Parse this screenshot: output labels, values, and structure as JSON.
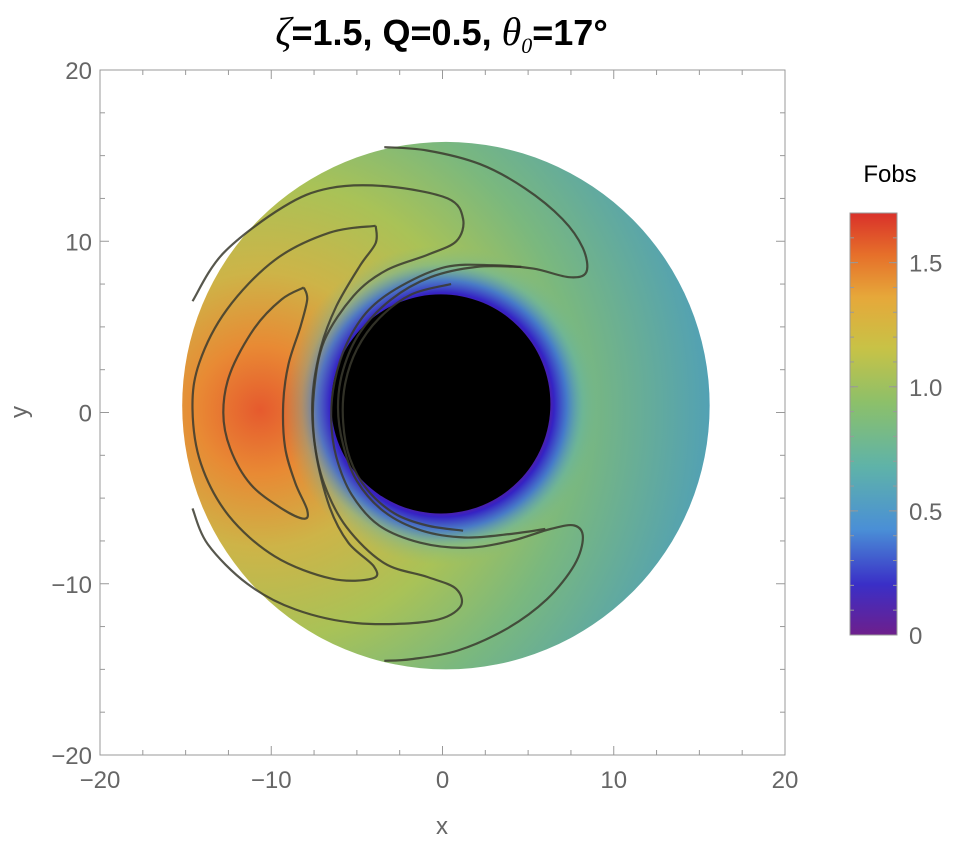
{
  "title": {
    "zeta_symbol": "ζ",
    "zeta_part": "=1.5, Q=0.5, ",
    "theta_symbol": "θ",
    "theta_sub": "0",
    "theta_part": "=17°"
  },
  "colors": {
    "shadow": "#000000",
    "contour": "#3a3a2e",
    "frame": "#999999",
    "tick_text": "#666666",
    "colormap": [
      "#6e1f8c",
      "#3a2fc7",
      "#4a8fd6",
      "#5fb3a8",
      "#8cc06a",
      "#c8c246",
      "#e6a83a",
      "#e6702a",
      "#d9312a"
    ]
  },
  "chart_data": {
    "type": "heatmap",
    "title": "ζ=1.5, Q=0.5, θ0=17°",
    "xlabel": "x",
    "ylabel": "y",
    "xlim": [
      -20,
      20
    ],
    "ylim": [
      -20,
      20
    ],
    "x_ticks": [
      {
        "value": -20,
        "label": "−20"
      },
      {
        "value": -10,
        "label": "−10"
      },
      {
        "value": 0,
        "label": "0"
      },
      {
        "value": 10,
        "label": "10"
      },
      {
        "value": 20,
        "label": "20"
      }
    ],
    "y_ticks": [
      {
        "value": 20,
        "label": "20"
      },
      {
        "value": 10,
        "label": "10"
      },
      {
        "value": 0,
        "label": "0"
      },
      {
        "value": -10,
        "label": "−10"
      },
      {
        "value": -20,
        "label": "−20"
      }
    ],
    "colorbar": {
      "title": "Fobs",
      "range": [
        0,
        1.7
      ],
      "ticks": [
        {
          "value": 0,
          "label": "0"
        },
        {
          "value": 0.5,
          "label": "0.5"
        },
        {
          "value": 1.0,
          "label": "1.0"
        },
        {
          "value": 1.5,
          "label": "1.5"
        }
      ]
    },
    "disk": {
      "center": [
        0.2,
        0.4
      ],
      "radius": 15.4
    },
    "shadow": {
      "center": [
        -0.1,
        0.5
      ],
      "radius": 6.4
    },
    "peak": {
      "center": [
        -10,
        0.5
      ],
      "value": 1.6
    },
    "contours": [
      {
        "name": "contour-inner",
        "points": [
          [
            -8.1,
            7.3
          ],
          [
            -9.4,
            6.6
          ],
          [
            -11.0,
            4.9
          ],
          [
            -12.4,
            2.3
          ],
          [
            -12.8,
            0.0
          ],
          [
            -12.4,
            -2.1
          ],
          [
            -11.2,
            -4.2
          ],
          [
            -9.4,
            -5.6
          ],
          [
            -8.1,
            -6.2
          ],
          [
            -7.9,
            -5.7
          ],
          [
            -8.6,
            -4.1
          ],
          [
            -9.2,
            -2.0
          ],
          [
            -9.3,
            0.5
          ],
          [
            -9.0,
            2.8
          ],
          [
            -8.3,
            5.0
          ],
          [
            -7.9,
            6.6
          ],
          [
            -8.1,
            7.3
          ]
        ]
      },
      {
        "name": "contour-middle",
        "points": [
          [
            -3.9,
            10.9
          ],
          [
            -6.6,
            10.5
          ],
          [
            -9.8,
            8.9
          ],
          [
            -12.6,
            6.0
          ],
          [
            -14.2,
            2.9
          ],
          [
            -14.6,
            0.2
          ],
          [
            -14.1,
            -3.0
          ],
          [
            -12.5,
            -6.0
          ],
          [
            -9.8,
            -8.4
          ],
          [
            -6.5,
            -9.7
          ],
          [
            -4.1,
            -9.7
          ],
          [
            -4.0,
            -9.0
          ],
          [
            -5.5,
            -7.6
          ],
          [
            -6.6,
            -5.5
          ],
          [
            -7.4,
            -2.3
          ],
          [
            -7.6,
            0.8
          ],
          [
            -7.1,
            3.8
          ],
          [
            -6.2,
            6.2
          ],
          [
            -4.8,
            8.6
          ],
          [
            -3.9,
            9.9
          ],
          [
            -3.9,
            10.9
          ]
        ]
      },
      {
        "name": "contour-outer",
        "points": [
          [
            -14.6,
            6.5
          ],
          [
            -12.8,
            9.3
          ],
          [
            -9.3,
            12.0
          ],
          [
            -6.6,
            13.1
          ],
          [
            -3.2,
            13.2
          ],
          [
            0.3,
            12.5
          ],
          [
            1.2,
            11.3
          ],
          [
            0.8,
            10.0
          ],
          [
            -0.9,
            9.2
          ],
          [
            -3.3,
            8.3
          ],
          [
            -5.2,
            6.8
          ],
          [
            -6.9,
            4.2
          ],
          [
            -7.5,
            1.3
          ],
          [
            -7.5,
            -1.5
          ],
          [
            -6.9,
            -4.2
          ],
          [
            -5.6,
            -6.7
          ],
          [
            -3.4,
            -8.8
          ],
          [
            -0.9,
            -9.6
          ],
          [
            0.8,
            -10.3
          ],
          [
            1.0,
            -11.4
          ],
          [
            -0.8,
            -12.2
          ],
          [
            -5.0,
            -12.3
          ],
          [
            -8.6,
            -11.5
          ],
          [
            -11.4,
            -10.0
          ],
          [
            -13.7,
            -7.7
          ],
          [
            -14.6,
            -5.6
          ]
        ]
      },
      {
        "name": "contour-crescent",
        "points": [
          [
            -3.4,
            15.5
          ],
          [
            -0.9,
            15.3
          ],
          [
            2.2,
            14.5
          ],
          [
            4.8,
            13.1
          ],
          [
            7.0,
            11.3
          ],
          [
            8.2,
            9.6
          ],
          [
            8.4,
            8.2
          ],
          [
            7.4,
            7.9
          ],
          [
            5.3,
            8.4
          ],
          [
            2.9,
            8.6
          ],
          [
            0.2,
            8.5
          ],
          [
            -2.4,
            7.4
          ],
          [
            -4.3,
            6.0
          ],
          [
            -5.6,
            4.0
          ],
          [
            -6.3,
            1.8
          ],
          [
            -6.5,
            -0.4
          ],
          [
            -6.2,
            -2.6
          ],
          [
            -5.3,
            -4.8
          ],
          [
            -3.7,
            -6.6
          ],
          [
            -1.3,
            -7.6
          ],
          [
            1.4,
            -7.9
          ],
          [
            4.0,
            -7.5
          ],
          [
            6.3,
            -6.8
          ],
          [
            7.7,
            -6.6
          ],
          [
            8.2,
            -7.3
          ],
          [
            7.7,
            -8.9
          ],
          [
            6.1,
            -10.9
          ],
          [
            3.8,
            -12.6
          ],
          [
            0.9,
            -13.9
          ],
          [
            -1.8,
            -14.4
          ],
          [
            -3.4,
            -14.5
          ]
        ]
      },
      {
        "name": "contour-inner-ring",
        "points": [
          [
            4.6,
            8.5
          ],
          [
            2.0,
            8.5
          ],
          [
            -0.7,
            7.9
          ],
          [
            -3.0,
            6.6
          ],
          [
            -4.8,
            4.7
          ],
          [
            -5.8,
            2.5
          ],
          [
            -6.1,
            0.3
          ],
          [
            -5.8,
            -1.9
          ],
          [
            -5.0,
            -4.0
          ],
          [
            -3.4,
            -5.8
          ],
          [
            -1.2,
            -6.9
          ],
          [
            1.3,
            -7.3
          ],
          [
            3.9,
            -7.1
          ],
          [
            6.0,
            -6.8
          ]
        ]
      },
      {
        "name": "contour-shadow-rim",
        "points": [
          [
            0.5,
            7.5
          ],
          [
            -1.8,
            6.9
          ],
          [
            -3.7,
            5.5
          ],
          [
            -5.0,
            3.7
          ],
          [
            -5.7,
            1.6
          ],
          [
            -5.8,
            -0.6
          ],
          [
            -5.4,
            -2.7
          ],
          [
            -4.4,
            -4.5
          ],
          [
            -2.8,
            -5.9
          ],
          [
            -0.9,
            -6.6
          ],
          [
            1.2,
            -6.9
          ]
        ]
      }
    ]
  }
}
